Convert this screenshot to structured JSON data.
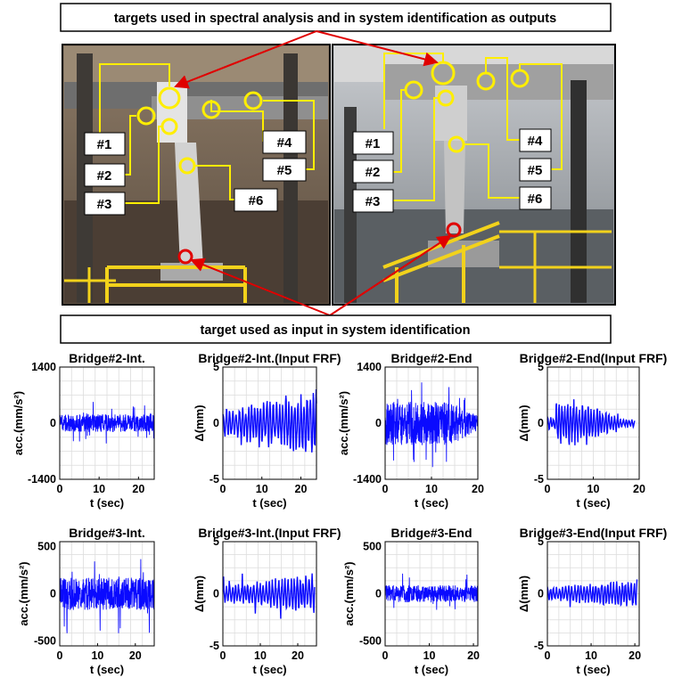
{
  "callouts": {
    "top": "targets used in spectral analysis and in system identification as outputs",
    "bottom": "target used as input in system identification"
  },
  "photo_labels": [
    "#1",
    "#2",
    "#3",
    "#4",
    "#5",
    "#6"
  ],
  "colors": {
    "signal": "#0a0aff",
    "marker": "#ffee00",
    "arrow": "#e00000",
    "rail": "#f2d21b"
  },
  "chart_data": [
    {
      "type": "line",
      "title": "Bridge#2-Int.",
      "xlabel": "t (sec)",
      "ylabel": "acc.(mm/s²)",
      "xlim": [
        0,
        24
      ],
      "ylim": [
        -1400,
        1400
      ],
      "xticks": [
        0,
        10,
        20
      ],
      "yticks": [
        -1400,
        0,
        1400
      ],
      "signal": {
        "duration": 24,
        "amplitude": 220,
        "peak": 620,
        "envelope": "stationary",
        "kind": "acceleration"
      }
    },
    {
      "type": "line",
      "title": "Bridge#2-Int.(Input FRF)",
      "xlabel": "t (sec)",
      "ylabel": "Δ(mm)",
      "xlim": [
        0,
        24
      ],
      "ylim": [
        -5,
        5
      ],
      "xticks": [
        0,
        10,
        20
      ],
      "yticks": [
        -5,
        0,
        5
      ],
      "signal": {
        "duration": 24,
        "amplitude": 1.7,
        "peak": 4.2,
        "envelope": "growing",
        "kind": "displacement"
      }
    },
    {
      "type": "line",
      "title": "Bridge#2-End",
      "xlabel": "t (sec)",
      "ylabel": "acc.(mm/s²)",
      "xlim": [
        0,
        20
      ],
      "ylim": [
        -1400,
        1400
      ],
      "xticks": [
        0,
        10,
        20
      ],
      "yticks": [
        -1400,
        0,
        1400
      ],
      "signal": {
        "duration": 20,
        "amplitude": 550,
        "peak": 1300,
        "envelope": "decaying-late",
        "kind": "acceleration"
      }
    },
    {
      "type": "line",
      "title": "Bridge#2-End(Input FRF)",
      "xlabel": "t (sec)",
      "ylabel": "Δ(mm)",
      "xlim": [
        0,
        20
      ],
      "ylim": [
        -5,
        5
      ],
      "xticks": [
        0,
        10,
        20
      ],
      "yticks": [
        -5,
        0,
        5
      ],
      "signal": {
        "duration": 19,
        "amplitude": 1.2,
        "peak": 3.0,
        "envelope": "burst",
        "kind": "displacement"
      }
    },
    {
      "type": "line",
      "title": "Bridge#3-Int.",
      "xlabel": "t (sec)",
      "ylabel": "acc.(mm/s²)",
      "xlim": [
        0,
        25
      ],
      "ylim": [
        -550,
        550
      ],
      "xticks": [
        0,
        10,
        20
      ],
      "yticks": [
        -500,
        0,
        500
      ],
      "signal": {
        "duration": 25,
        "amplitude": 170,
        "peak": 470,
        "envelope": "stationary",
        "kind": "acceleration"
      }
    },
    {
      "type": "line",
      "title": "Bridge#3-Int.(Input FRF)",
      "xlabel": "t (sec)",
      "ylabel": "Δ(mm)",
      "xlim": [
        0,
        25
      ],
      "ylim": [
        -5,
        5
      ],
      "xticks": [
        0,
        10,
        20
      ],
      "yticks": [
        -5,
        0,
        5
      ],
      "signal": {
        "duration": 24.5,
        "amplitude": 1.1,
        "peak": 3.3,
        "envelope": "growing",
        "kind": "displacement"
      }
    },
    {
      "type": "line",
      "title": "Bridge#3-End",
      "xlabel": "t (sec)",
      "ylabel": "acc.(mm/s²)",
      "xlim": [
        0,
        21
      ],
      "ylim": [
        -550,
        550
      ],
      "xticks": [
        0,
        10,
        20
      ],
      "yticks": [
        -500,
        0,
        500
      ],
      "signal": {
        "duration": 21,
        "amplitude": 90,
        "peak": 240,
        "envelope": "stationary",
        "kind": "acceleration"
      }
    },
    {
      "type": "line",
      "title": "Bridge#3-End(Input FRF)",
      "xlabel": "t (sec)",
      "ylabel": "Δ(mm)",
      "xlim": [
        0,
        21
      ],
      "ylim": [
        -5,
        5
      ],
      "xticks": [
        0,
        10,
        20
      ],
      "yticks": [
        -5,
        0,
        5
      ],
      "signal": {
        "duration": 20.5,
        "amplitude": 0.8,
        "peak": 1.8,
        "envelope": "growing",
        "kind": "displacement"
      }
    }
  ]
}
